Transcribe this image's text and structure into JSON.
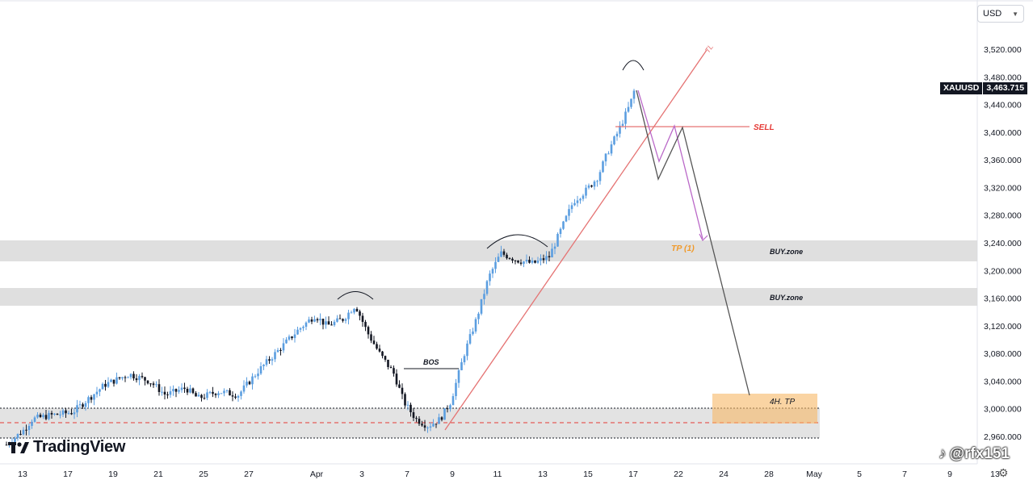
{
  "chart_data": {
    "type": "candlestick",
    "symbol": "XAUUSD",
    "currency": "USD",
    "last_price": "3,463.715",
    "price_ticks": [
      "3,520.000",
      "3,480.000",
      "3,440.000",
      "3,400.000",
      "3,360.000",
      "3,320.000",
      "3,280.000",
      "3,240.000",
      "3,200.000",
      "3,160.000",
      "3,120.000",
      "3,080.000",
      "3,040.000",
      "3,000.000",
      "2,960.000"
    ],
    "y_range": [
      2936,
      3550
    ],
    "date_ticks": [
      "13",
      "17",
      "19",
      "21",
      "25",
      "27",
      "Apr",
      "3",
      "7",
      "9",
      "11",
      "13",
      "15",
      "17",
      "22",
      "24",
      "28",
      "May",
      "5",
      "7",
      "9",
      "13"
    ],
    "date_tick_x": [
      28,
      84,
      140,
      196,
      252,
      308,
      392,
      448,
      504,
      560,
      616,
      672,
      728,
      784,
      840,
      896,
      952,
      1008,
      1064,
      1120,
      1176,
      1232
    ],
    "annotations": {
      "sell": "SELL",
      "tp1": "TP  (1)",
      "buy_zone_upper": "BUY.zone",
      "buy_zone_lower": "BUY.zone",
      "tp_4h": "4H. TP",
      "bos": "BOS",
      "trendline": "TL"
    },
    "zones": {
      "buy_upper": [
        3214,
        3243
      ],
      "buy_lower": [
        3150,
        3176
      ],
      "support": [
        2970,
        3006
      ]
    }
  },
  "branding": {
    "name": "TradingView",
    "watermark": "@rfx151"
  }
}
